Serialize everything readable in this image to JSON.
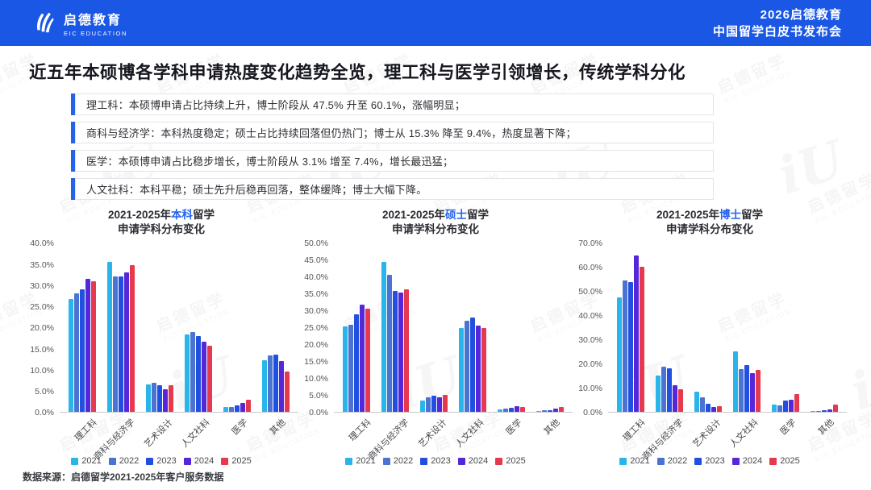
{
  "colors": {
    "header_bg": "#1b57e5",
    "accent_blue": "#2563eb",
    "bullet_bar": "#2563eb"
  },
  "header": {
    "logo_name": "启德教育",
    "logo_sub": "EIC EDUCATION",
    "event_line1": "2026启德教育",
    "event_line2": "中国留学白皮书发布会"
  },
  "page_title": "近五年本硕博各学科申请热度变化趋势全览，理工科与医学引领增长，传统学科分化",
  "bullets": [
    "理工科：本硕博申请占比持续上升，博士阶段从 47.5% 升至 60.1%，涨幅明显；",
    "商科与经济学：本科热度稳定；硕士占比持续回落但仍热门；博士从 15.3% 降至 9.4%，热度显著下降；",
    "医学：本硕博申请占比稳步增长，博士阶段从 3.1% 增至 7.4%，增长最迅猛；",
    "人文社科：本科平稳；硕士先升后稳再回落，整体缓降；博士大幅下降。"
  ],
  "watermark": {
    "text": "启德留学",
    "subtext": "EIC EDUCATION",
    "logo": "iU"
  },
  "legend": {
    "years": [
      "2021",
      "2022",
      "2023",
      "2024",
      "2025"
    ],
    "colors": [
      "#29b4ea",
      "#4a73d2",
      "#2150e0",
      "#5627d8",
      "#e6394f"
    ]
  },
  "chart_data": [
    {
      "type": "bar",
      "title_prefix": "2021-2025年",
      "title_highlight": "本科",
      "title_suffix": "留学",
      "title_line2": "申请学科分布变化",
      "y_max": 40,
      "y_tick_labels": [
        "0.0%",
        "5.0%",
        "10.0%",
        "15.0%",
        "20.0%",
        "25.0%",
        "30.0%",
        "35.0%",
        "40.0%"
      ],
      "categories": [
        "理工科",
        "商科与经济学",
        "艺术设计",
        "人文社科",
        "医学",
        "其他"
      ],
      "series": [
        {
          "name": "2021",
          "values": [
            26.8,
            35.5,
            6.5,
            18.3,
            1.2,
            12.3
          ]
        },
        {
          "name": "2022",
          "values": [
            28.0,
            32.0,
            6.9,
            18.9,
            1.3,
            13.4
          ]
        },
        {
          "name": "2023",
          "values": [
            29.0,
            32.0,
            6.3,
            18.0,
            1.7,
            13.6
          ]
        },
        {
          "name": "2024",
          "values": [
            31.5,
            33.0,
            5.4,
            16.6,
            2.1,
            12.1
          ]
        },
        {
          "name": "2025",
          "values": [
            31.0,
            34.8,
            6.4,
            15.8,
            3.0,
            9.6
          ]
        }
      ],
      "legend_position": "bottom",
      "grid": false
    },
    {
      "type": "bar",
      "title_prefix": "2021-2025年",
      "title_highlight": "硕士",
      "title_suffix": "留学",
      "title_line2": "申请学科分布变化",
      "y_max": 50,
      "y_tick_labels": [
        "0.0%",
        "5.0%",
        "10.0%",
        "15.0%",
        "20.0%",
        "25.0%",
        "30.0%",
        "35.0%",
        "40.0%",
        "45.0%",
        "50.0%"
      ],
      "categories": [
        "理工科",
        "商科与经济学",
        "艺术设计",
        "人文社科",
        "医学",
        "其他"
      ],
      "series": [
        {
          "name": "2021",
          "values": [
            25.3,
            44.3,
            3.5,
            24.9,
            0.9,
            0.4
          ]
        },
        {
          "name": "2022",
          "values": [
            25.8,
            40.6,
            4.4,
            27.1,
            1.1,
            0.5
          ]
        },
        {
          "name": "2023",
          "values": [
            29.0,
            35.8,
            4.8,
            28.0,
            1.3,
            0.7
          ]
        },
        {
          "name": "2024",
          "values": [
            31.7,
            35.3,
            4.5,
            25.7,
            1.7,
            1.0
          ]
        },
        {
          "name": "2025",
          "values": [
            30.5,
            36.3,
            5.0,
            24.8,
            1.5,
            1.6
          ]
        }
      ],
      "legend_position": "bottom",
      "grid": false
    },
    {
      "type": "bar",
      "title_prefix": "2021-2025年",
      "title_highlight": "博士",
      "title_suffix": "留学",
      "title_line2": "申请学科分布变化",
      "y_max": 70,
      "y_tick_labels": [
        "0.0%",
        "10.0%",
        "20.0%",
        "30.0%",
        "40.0%",
        "50.0%",
        "60.0%",
        "70.0%"
      ],
      "categories": [
        "理工科",
        "商科与经济学",
        "艺术设计",
        "人文社科",
        "医学",
        "其他"
      ],
      "series": [
        {
          "name": "2021",
          "values": [
            47.5,
            15.3,
            8.6,
            25.2,
            3.1,
            0.4
          ]
        },
        {
          "name": "2022",
          "values": [
            54.5,
            18.7,
            6.2,
            17.8,
            2.9,
            0.5
          ]
        },
        {
          "name": "2023",
          "values": [
            53.8,
            18.2,
            3.4,
            19.5,
            4.7,
            0.8
          ]
        },
        {
          "name": "2024",
          "values": [
            64.8,
            11.0,
            2.1,
            16.2,
            5.3,
            1.2
          ]
        },
        {
          "name": "2025",
          "values": [
            60.1,
            9.4,
            2.6,
            17.5,
            7.4,
            3.0
          ]
        }
      ],
      "legend_position": "bottom",
      "grid": false
    }
  ],
  "footer": {
    "source": "数据来源：启德留学2021-2025年客户服务数据"
  }
}
